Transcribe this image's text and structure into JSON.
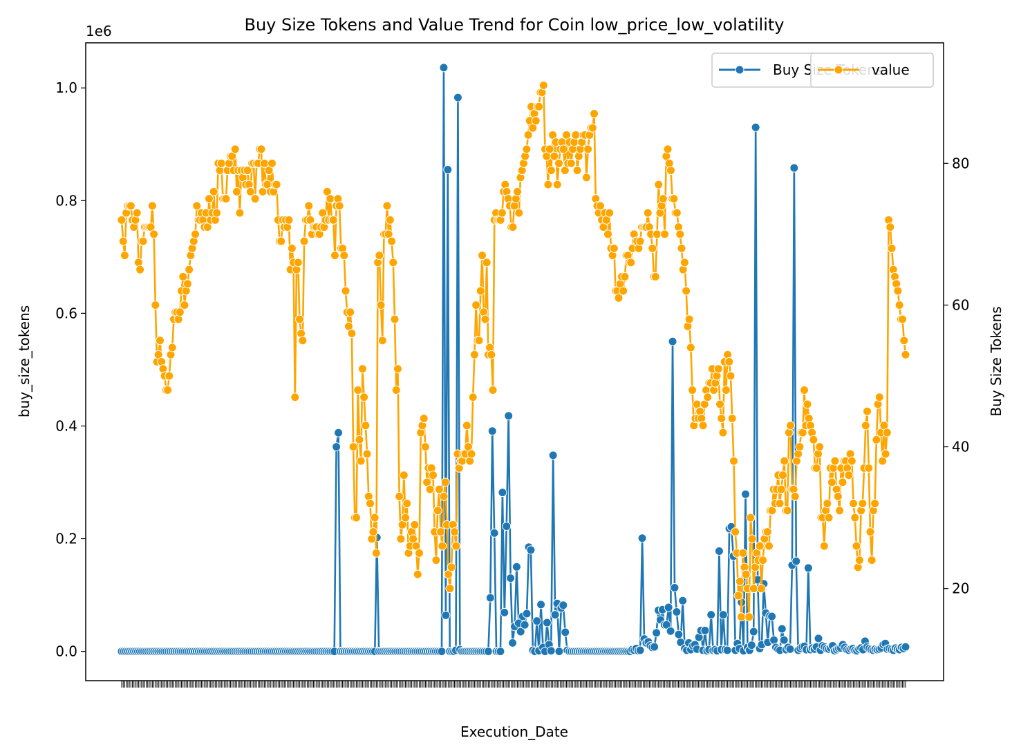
{
  "chart_data": {
    "type": "line",
    "title": "Buy Size Tokens and Value Trend for Coin low_price_low_volatility",
    "xlabel": "Execution_Date",
    "ylabel": "buy_size_tokens",
    "y2label": "Buy Size Tokens",
    "y_offset_text": "1e6",
    "ylim": [
      -0.052,
      1.08
    ],
    "y2lim": [
      7,
      97
    ],
    "yticks": [
      "0.0",
      "0.2",
      "0.4",
      "0.6",
      "0.8",
      "1.0"
    ],
    "y2ticks": [
      "20",
      "40",
      "60",
      "80"
    ],
    "grid": false,
    "legend_left_placement": "top-right",
    "legend_right_placement": "top-right",
    "colors": {
      "buy": "#1f77b4",
      "value": "#ffa500"
    },
    "series": [
      {
        "name": "Buy Size Tokens",
        "axis": "left",
        "unit_multiplier": 1000000,
        "values": [
          0,
          0,
          0,
          0,
          0,
          0,
          0,
          0,
          0,
          0,
          0,
          0,
          0,
          0,
          0,
          0,
          0,
          0,
          0,
          0,
          0,
          0,
          0,
          0,
          0,
          0,
          0,
          0,
          0,
          0,
          0,
          0,
          0,
          0,
          0,
          0,
          0,
          0,
          0,
          0,
          0,
          0,
          0,
          0,
          0,
          0,
          0,
          0,
          0,
          0,
          0,
          0,
          0,
          0,
          0,
          0,
          0,
          0,
          0,
          0,
          0,
          0,
          0,
          0,
          0,
          0,
          0,
          0,
          0,
          0,
          0,
          0,
          0,
          0,
          0,
          0,
          0,
          0,
          0,
          0,
          0,
          0,
          0,
          0,
          0,
          0,
          0,
          0,
          0,
          0,
          0,
          0,
          0,
          0,
          0,
          0,
          0,
          0,
          0,
          0,
          0,
          0,
          0,
          0,
          0,
          0,
          0.363,
          0.388,
          0,
          0,
          0,
          0,
          0,
          0,
          0,
          0,
          0,
          0,
          0,
          0,
          0,
          0,
          0,
          0,
          0,
          0,
          0.202,
          0,
          0,
          0,
          0,
          0,
          0,
          0,
          0,
          0,
          0,
          0,
          0,
          0,
          0,
          0,
          0,
          0,
          0,
          0,
          0,
          0,
          0,
          0,
          0,
          0,
          0,
          0,
          0,
          0,
          0,
          0,
          0,
          1.036,
          0.064,
          0.855,
          0,
          0,
          0,
          0.002,
          0.983,
          0.003,
          0,
          0,
          0,
          0,
          0,
          0,
          0,
          0,
          0,
          0,
          0,
          0,
          0,
          0,
          0.095,
          0.391,
          0.21,
          0,
          0,
          0,
          0.282,
          0.069,
          0.222,
          0.418,
          0.13,
          0.015,
          0.044,
          0.15,
          0.05,
          0.035,
          0.062,
          0.047,
          0.067,
          0.185,
          0.18,
          0.002,
          0,
          0.054,
          0.001,
          0.083,
          0.007,
          0,
          0.051,
          0.012,
          0.001,
          0.348,
          0.065,
          0.085,
          0,
          0.077,
          0.082,
          0.034,
          0.002,
          0,
          0,
          0,
          0,
          0,
          0,
          0,
          0,
          0,
          0,
          0,
          0,
          0,
          0,
          0,
          0,
          0,
          0,
          0,
          0,
          0,
          0,
          0,
          0,
          0,
          0,
          0,
          0,
          0,
          0,
          0,
          0.003,
          0.002,
          0.005,
          0.001,
          0.002,
          0.201,
          0.022,
          0.015,
          0.017,
          0.01,
          0.007,
          0.008,
          0.033,
          0.073,
          0.056,
          0.074,
          0.047,
          0.047,
          0.078,
          0.036,
          0.55,
          0.113,
          0.07,
          0.03,
          0.016,
          0.09,
          0.005,
          0.002,
          0.015,
          0.003,
          0.01,
          0.012,
          0.004,
          0.025,
          0.037,
          0.002,
          0.037,
          0.001,
          0.003,
          0.065,
          0.002,
          0.003,
          0.001,
          0.178,
          0.003,
          0.065,
          0.003,
          0.002,
          0.218,
          0.221,
          0.169,
          0.002,
          0.014,
          0.005,
          0.087,
          0.001,
          0.279,
          0.007,
          0.002,
          0.011,
          0.035,
          0.93,
          0.127,
          0.005,
          0.012,
          0.12,
          0.068,
          0.016,
          0.063,
          0.062,
          0.02,
          0.007,
          0.004,
          0.002,
          0.04,
          0.02,
          0.003,
          0.007,
          0.004,
          0.153,
          0.858,
          0.16,
          0.002,
          0.005,
          0.008,
          0.009,
          0.003,
          0.148,
          0.003,
          0.006,
          0.004,
          0.008,
          0.023,
          0.002,
          0.01,
          0.008,
          0.005,
          0.004,
          0.006,
          0.01,
          0.001,
          0.003,
          0.005,
          0.006,
          0.012,
          0.007,
          0.003,
          0.002,
          0.004,
          0.005,
          0.002,
          0.001,
          0.004,
          0.006,
          0.003,
          0.018,
          0.008,
          0.005,
          0.003,
          0.002,
          0.004,
          0.003,
          0.004,
          0.006,
          0.012,
          0.014,
          0.004,
          0.005,
          0.003,
          0.002,
          0.006,
          0.004,
          0.003,
          0.007,
          0.005,
          0.008
        ]
      },
      {
        "name": "value",
        "axis": "right",
        "values": [
          72,
          69,
          67,
          73,
          74,
          74,
          74,
          72,
          71,
          72,
          73,
          66,
          65,
          69,
          69,
          71,
          71,
          71,
          71,
          71,
          74,
          70,
          60,
          52,
          53,
          55,
          52,
          51,
          50,
          48,
          48,
          50,
          53,
          54,
          58,
          59,
          59,
          58,
          59,
          62,
          64,
          60,
          62,
          63,
          65,
          67,
          68,
          69,
          70,
          74,
          72,
          72,
          73,
          72,
          71,
          73,
          71,
          75,
          72,
          73,
          76,
          72,
          73,
          80,
          79,
          80,
          75,
          75,
          75,
          79,
          80,
          81,
          81,
          79,
          82,
          76,
          79,
          73,
          79,
          78,
          79,
          77,
          79,
          77,
          76,
          80,
          80,
          75,
          80,
          80,
          82,
          82,
          76,
          80,
          77,
          77,
          79,
          76,
          80,
          76,
          77,
          77,
          72,
          69,
          69,
          72,
          71,
          72,
          71,
          72,
          65,
          68,
          66,
          47,
          65,
          66,
          58,
          56,
          55,
          69,
          72,
          72,
          74,
          72,
          70,
          71,
          71,
          71,
          70,
          70,
          71,
          73,
          71,
          72,
          76,
          72,
          75,
          72,
          72,
          67,
          74,
          75,
          74,
          68,
          68,
          67,
          62,
          59,
          57,
          59,
          56,
          40,
          30,
          30,
          48,
          41,
          38,
          51,
          47,
          43,
          39,
          33,
          32,
          27,
          28,
          30,
          25,
          66,
          67,
          60,
          55,
          70,
          70,
          74,
          70,
          72,
          69,
          66,
          58,
          48,
          51,
          33,
          27,
          29,
          36,
          30,
          32,
          25,
          26,
          28,
          27,
          29,
          26,
          22,
          25,
          42,
          43,
          44,
          40,
          35,
          37,
          34,
          37,
          36,
          28,
          24,
          31,
          34,
          28,
          26,
          33,
          35,
          29,
          22,
          20,
          23,
          29,
          28,
          26,
          39,
          37,
          38,
          38,
          39,
          39,
          43,
          40,
          38,
          39,
          47,
          53,
          60,
          55,
          55,
          62,
          67,
          59,
          58,
          66,
          53,
          54,
          53,
          48,
          72,
          73,
          72,
          72,
          72,
          73,
          76,
          77,
          76,
          75,
          74,
          71,
          71,
          74,
          75,
          76,
          73,
          78,
          79,
          80,
          81,
          82,
          84,
          86,
          88,
          85,
          87,
          86,
          88,
          88,
          90,
          90,
          91,
          82,
          81,
          77,
          82,
          79,
          84,
          81,
          83,
          77,
          80,
          82,
          83,
          82,
          79,
          84,
          80,
          83,
          80,
          82,
          83,
          84,
          79,
          81,
          82,
          83,
          84,
          84,
          78,
          82,
          84,
          85,
          85,
          87,
          75,
          74,
          73,
          74,
          72,
          71,
          73,
          72,
          70,
          73,
          68,
          67,
          68,
          62,
          62,
          61,
          63,
          64,
          62,
          64,
          67,
          67,
          66,
          66,
          68,
          70,
          69,
          69,
          68,
          69,
          71,
          71,
          71,
          71,
          73,
          71,
          70,
          68,
          64,
          64,
          70,
          77,
          73,
          74,
          75,
          70,
          81,
          82,
          80,
          79,
          75,
          75,
          73,
          73,
          71,
          70,
          68,
          65,
          66,
          62,
          57,
          58,
          54,
          48,
          43,
          44,
          46,
          44,
          45,
          44,
          43,
          46,
          48,
          47,
          49,
          49,
          51,
          48,
          49,
          50,
          51,
          46,
          44,
          42,
          52,
          48,
          53,
          52,
          50,
          44,
          38,
          28,
          25,
          19,
          21,
          16,
          25,
          23,
          22,
          20,
          16,
          30,
          27,
          20,
          23,
          25,
          24,
          26,
          20,
          24,
          27,
          28,
          28,
          26,
          31,
          31,
          34,
          32,
          34,
          36,
          32,
          34,
          36,
          38,
          31,
          31,
          42,
          43,
          34,
          34,
          33,
          38,
          39,
          40,
          42,
          42,
          48,
          43,
          46,
          44,
          43,
          42,
          41,
          37,
          37,
          39,
          40,
          30,
          30,
          26,
          31,
          32,
          30,
          37,
          35,
          37,
          38,
          34,
          33,
          31,
          37,
          35,
          38,
          38,
          37,
          36,
          39,
          38,
          32,
          30,
          26,
          23,
          24,
          31,
          32,
          37,
          43,
          45,
          37,
          28,
          24,
          31,
          32,
          41,
          46,
          47,
          42,
          38,
          43,
          39,
          42,
          72,
          71,
          68,
          65,
          64,
          63,
          62,
          60,
          58,
          58,
          55,
          53
        ]
      }
    ]
  }
}
